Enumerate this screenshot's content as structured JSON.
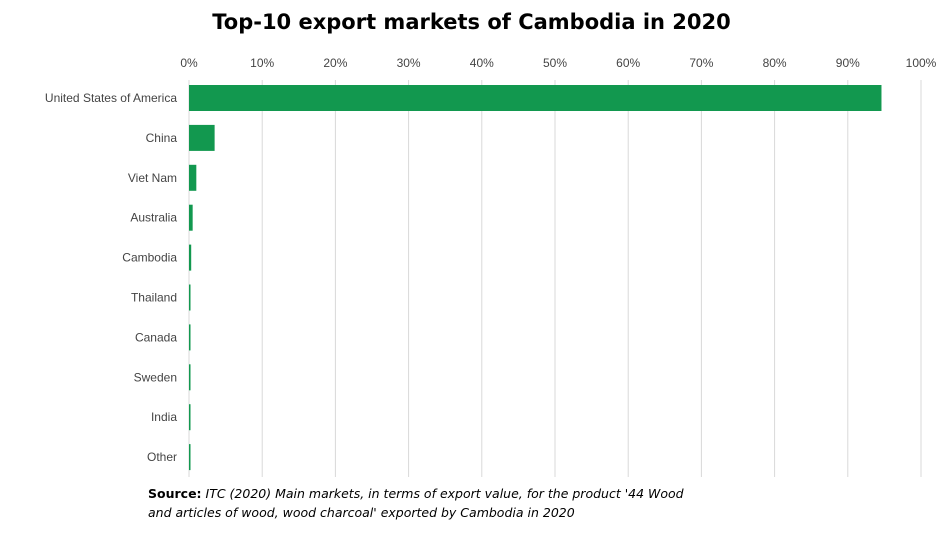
{
  "chart_data": {
    "type": "bar",
    "orientation": "horizontal",
    "title": "Top-10 export markets of Cambodia in 2020",
    "categories": [
      "United States of America",
      "China",
      "Viet Nam",
      "Australia",
      "Cambodia",
      "Thailand",
      "Canada",
      "Sweden",
      "India",
      "Other"
    ],
    "values": [
      94.6,
      3.5,
      1.0,
      0.5,
      0.3,
      0.15,
      0.1,
      0.1,
      0.1,
      0.2
    ],
    "unit": "%",
    "xlim": [
      0,
      100
    ],
    "ticks": [
      "0%",
      "10%",
      "20%",
      "30%",
      "40%",
      "50%",
      "60%",
      "70%",
      "80%",
      "90%",
      "100%"
    ],
    "tick_values": [
      0,
      10,
      20,
      30,
      40,
      50,
      60,
      70,
      80,
      90,
      100
    ],
    "grid": true,
    "axis_position": "top",
    "bar_color": "#12984f"
  },
  "source": {
    "label": "Source:",
    "text": "ITC (2020) Main markets, in terms of export value, for the product '44 Wood and articles of wood, wood charcoal' exported by Cambodia in 2020"
  }
}
